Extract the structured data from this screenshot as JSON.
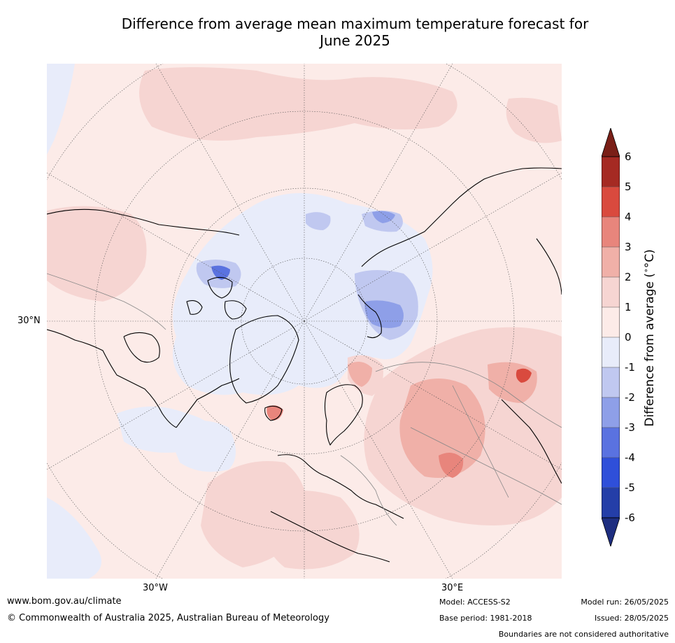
{
  "title_line1": "Difference from average mean maximum temperature forecast for",
  "title_line2": "June 2025",
  "map": {
    "projection": "north-polar-stereographic",
    "lat_label": "30°N",
    "lon_labels": [
      "30°W",
      "30°E"
    ]
  },
  "colorbar": {
    "label": "Difference from average (°C)",
    "label_text": "Difference from average (",
    "label_unit": "°C)",
    "ticks": [
      "6",
      "5",
      "4",
      "3",
      "2",
      "1",
      "0",
      "-1",
      "-2",
      "-3",
      "-4",
      "-5",
      "-6"
    ],
    "extend": "both",
    "colors_top_to_bottom": [
      "#a52a23",
      "#d94a3e",
      "#e8857c",
      "#f0b0a8",
      "#f6d5d2",
      "#fcebe8",
      "#e8ecfa",
      "#c0c8f0",
      "#8e9fe8",
      "#5a72e0",
      "#2f4fd9",
      "#243ea8"
    ],
    "over_color": "#7a1f17",
    "under_color": "#1e2e80"
  },
  "footer": {
    "website": "www.bom.gov.au/climate",
    "copyright": "© Commonwealth of Australia 2025, Australian Bureau of Meteorology",
    "model": "Model: ACCESS-S2",
    "base_period": "Base period: 1981-2018",
    "model_run": "Model run: 26/05/2025",
    "issued": "Issued: 28/05/2025",
    "disclaimer": "Boundaries are not considered authoritative"
  }
}
